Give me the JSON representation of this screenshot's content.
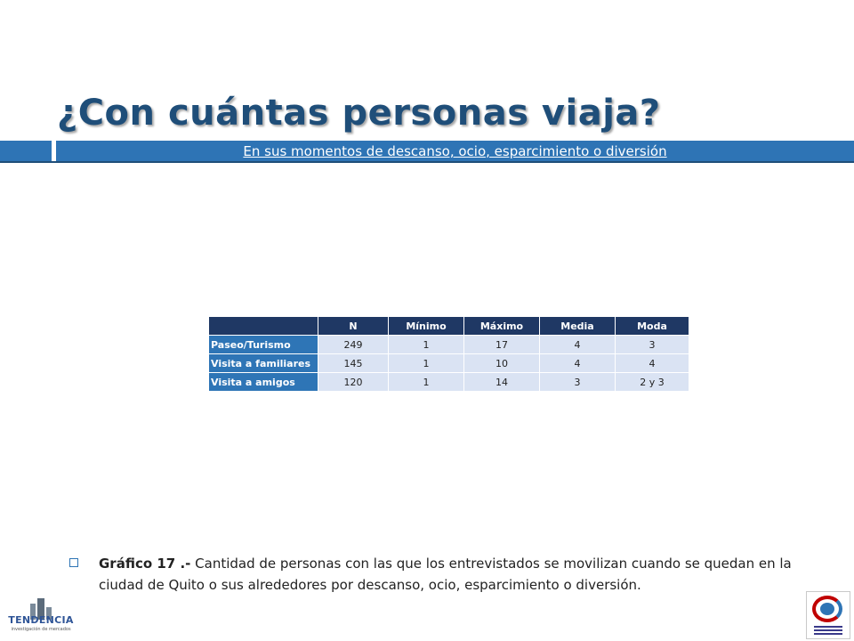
{
  "slide": {
    "title": "¿Con cuántas personas viaja?",
    "subtitle": "En sus momentos de descanso, ocio, esparcimiento o diversión"
  },
  "table": {
    "headers": [
      "N",
      "Mínimo",
      "Máximo",
      "Media",
      "Moda"
    ],
    "rows": [
      {
        "label": "Paseo/Turismo",
        "values": [
          "249",
          "1",
          "17",
          "4",
          "3"
        ]
      },
      {
        "label": "Visita a familiares",
        "values": [
          "145",
          "1",
          "10",
          "4",
          "4"
        ]
      },
      {
        "label": "Visita a amigos",
        "values": [
          "120",
          "1",
          "14",
          "3",
          "2 y 3"
        ]
      }
    ]
  },
  "caption": {
    "bold": "Gráfico 17 .-",
    "text": " Cantidad de personas con las que los entrevistados se movilizan cuando se quedan en la ciudad de Quito o sus alrededores por descanso, ocio, esparcimiento o diversión."
  },
  "logos": {
    "left_name": "TENDENCIA",
    "left_tagline": "investigación de mercados"
  },
  "colors": {
    "title": "#1f4e79",
    "band": "#2e74b5",
    "header": "#1f3864",
    "row_label": "#2e75b6",
    "cell": "#dae3f3"
  }
}
